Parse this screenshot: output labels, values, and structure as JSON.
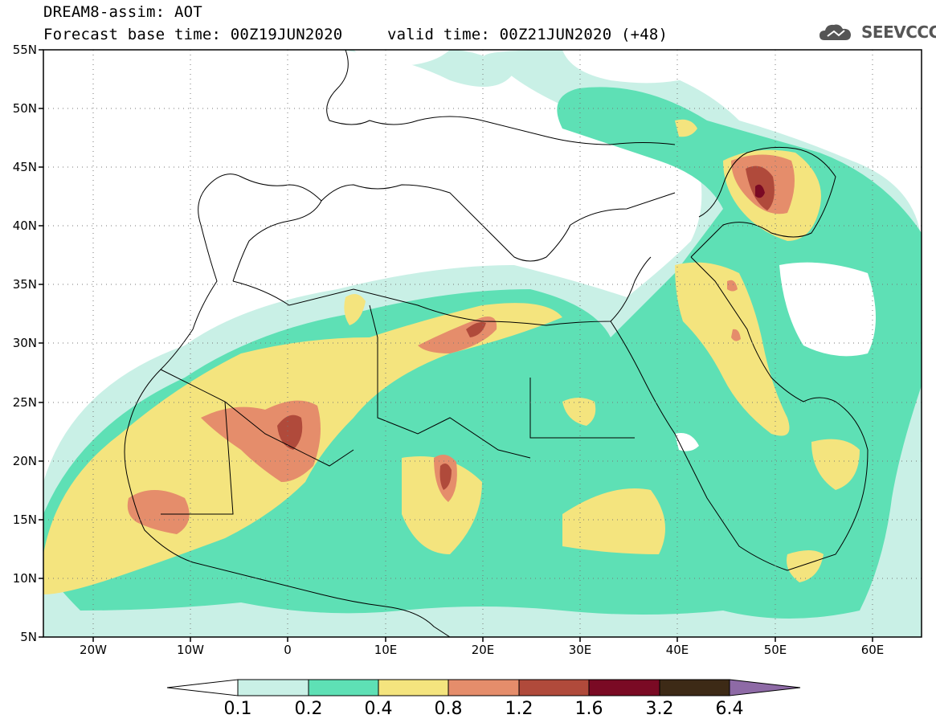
{
  "header": {
    "line1": "DREAM8-assim: AOT",
    "line2": "Forecast base time: 00Z19JUN2020",
    "line3": "valid time: 00Z21JUN2020 (+48)",
    "logo_text": "SEEVCCC",
    "logo_icon": "cloud-icon"
  },
  "map": {
    "extent": {
      "lon_min": -25,
      "lon_max": 65,
      "lat_min": 5,
      "lat_max": 55
    },
    "lat_labels": [
      "55N",
      "50N",
      "45N",
      "40N",
      "35N",
      "30N",
      "25N",
      "20N",
      "15N",
      "10N",
      "5N"
    ],
    "lat_values": [
      55,
      50,
      45,
      40,
      35,
      30,
      25,
      20,
      15,
      10,
      5
    ],
    "lon_labels": [
      "20W",
      "10W",
      "0",
      "10E",
      "20E",
      "30E",
      "40E",
      "50E",
      "60E"
    ],
    "lon_values": [
      -20,
      -10,
      0,
      10,
      20,
      30,
      40,
      50,
      60
    ]
  },
  "colorbar": {
    "labels": [
      "0.1",
      "0.2",
      "0.4",
      "0.8",
      "1.2",
      "1.6",
      "3.2",
      "6.4"
    ],
    "colors": [
      "#ffffff",
      "#c9f0e6",
      "#5ee0b5",
      "#f4e47e",
      "#e58d6b",
      "#b04a3b",
      "#7a0a24",
      "#3d2a16",
      "#8e6aa6"
    ]
  }
}
